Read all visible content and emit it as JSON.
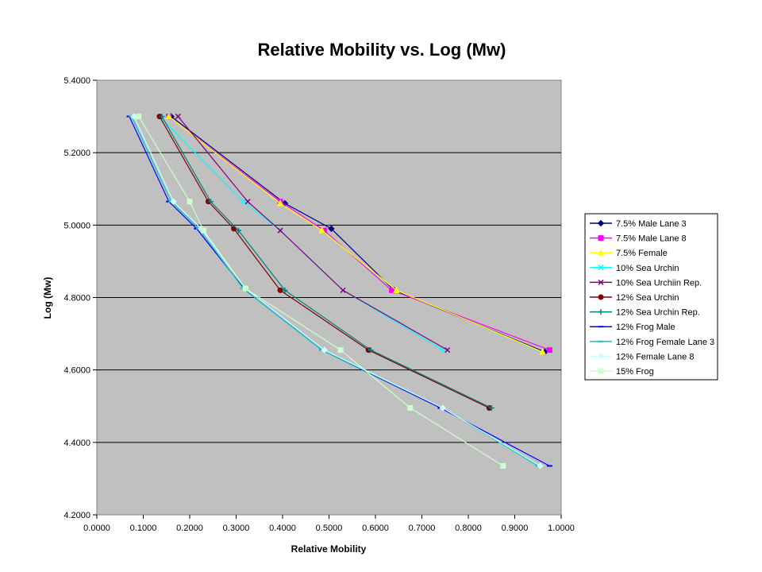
{
  "chart_data": {
    "type": "line",
    "title": "Relative Mobility vs. Log (Mw)",
    "xlabel": "Relative Mobility",
    "ylabel": "Log (Mw)",
    "xlim": [
      0.0,
      1.0
    ],
    "ylim": [
      4.2,
      5.4
    ],
    "x_ticks": [
      "0.0000",
      "0.1000",
      "0.2000",
      "0.3000",
      "0.4000",
      "0.5000",
      "0.6000",
      "0.7000",
      "0.8000",
      "0.9000",
      "1.0000"
    ],
    "y_ticks": [
      "4.2000",
      "4.4000",
      "4.6000",
      "4.8000",
      "5.0000",
      "5.2000",
      "5.4000"
    ],
    "grid": "horizontal",
    "legend_position": "right",
    "plot_background": "#c0c0c0",
    "series": [
      {
        "name": "7.5% Male Lane 3",
        "color": "#000080",
        "marker": "diamond",
        "x": [
          0.16,
          0.405,
          0.505,
          0.64,
          0.965
        ],
        "y": [
          5.3,
          5.06,
          4.99,
          4.82,
          4.65
        ]
      },
      {
        "name": "7.5% Male Lane 8",
        "color": "#ff00ff",
        "marker": "square",
        "x": [
          0.155,
          0.395,
          0.49,
          0.635,
          0.975
        ],
        "y": [
          5.3,
          5.065,
          4.985,
          4.82,
          4.655
        ]
      },
      {
        "name": "7.5% Female",
        "color": "#ffff00",
        "marker": "triangle",
        "x": [
          0.155,
          0.395,
          0.485,
          0.645,
          0.96
        ],
        "y": [
          5.3,
          5.06,
          4.985,
          4.82,
          4.65
        ]
      },
      {
        "name": "10% Sea Urchin",
        "color": "#00ffff",
        "marker": "x",
        "x": [
          0.135,
          0.315,
          0.395,
          0.53,
          0.745
        ],
        "y": [
          5.3,
          5.065,
          4.985,
          4.82,
          4.655
        ]
      },
      {
        "name": "10% Sea Urchiin Rep.",
        "color": "#800080",
        "marker": "x",
        "x": [
          0.175,
          0.325,
          0.395,
          0.53,
          0.755
        ],
        "y": [
          5.3,
          5.065,
          4.985,
          4.82,
          4.655
        ]
      },
      {
        "name": "12% Sea Urchin",
        "color": "#800000",
        "marker": "circle",
        "x": [
          0.135,
          0.24,
          0.295,
          0.395,
          0.585,
          0.845
        ],
        "y": [
          5.3,
          5.065,
          4.99,
          4.82,
          4.655,
          4.495
        ]
      },
      {
        "name": "12% Sea Urchin Rep.",
        "color": "#008080",
        "marker": "plus",
        "x": [
          0.14,
          0.245,
          0.305,
          0.405,
          0.59,
          0.85
        ],
        "y": [
          5.3,
          5.065,
          4.985,
          4.82,
          4.655,
          4.495
        ]
      },
      {
        "name": "12% Frog Male",
        "color": "#0000ff",
        "marker": "dash",
        "x": [
          0.07,
          0.155,
          0.215,
          0.32,
          0.485,
          0.74,
          0.975
        ],
        "y": [
          5.3,
          5.065,
          4.99,
          4.82,
          4.655,
          4.495,
          4.335
        ]
      },
      {
        "name": "12% Frog Female Lane 3",
        "color": "#00cccc",
        "marker": "dash",
        "x": [
          0.075,
          0.16,
          0.22,
          0.315,
          0.485,
          0.745,
          0.95
        ],
        "y": [
          5.3,
          5.065,
          4.99,
          4.825,
          4.655,
          4.495,
          4.335
        ]
      },
      {
        "name": "12% Female Lane 8",
        "color": "#ccffff",
        "marker": "diamond",
        "x": [
          0.08,
          0.165,
          0.225,
          0.32,
          0.49,
          0.745,
          0.955
        ],
        "y": [
          5.3,
          5.065,
          4.99,
          4.825,
          4.655,
          4.495,
          4.335
        ]
      },
      {
        "name": "15% Frog",
        "color": "#ccffcc",
        "marker": "square",
        "x": [
          0.09,
          0.2,
          0.23,
          0.32,
          0.525,
          0.675,
          0.875
        ],
        "y": [
          5.3,
          5.065,
          4.985,
          4.825,
          4.655,
          4.495,
          4.335
        ]
      }
    ]
  }
}
